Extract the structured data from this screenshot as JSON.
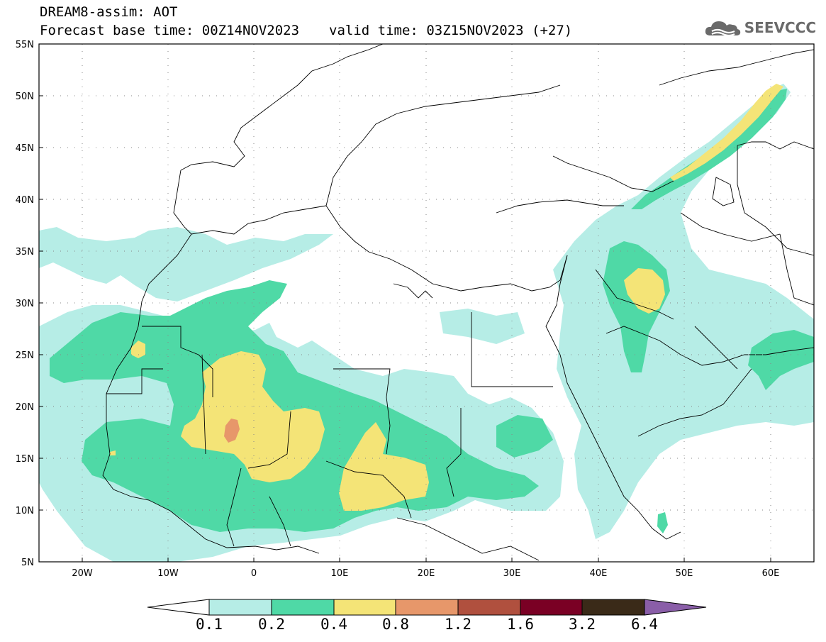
{
  "header": {
    "title": "DREAM8-assim: AOT",
    "base_time": "Forecast base time: 00Z14NOV2023",
    "valid_time": "valid time: 03Z15NOV2023 (+27)"
  },
  "logo": {
    "text": "SEEVCCC",
    "icon": "cloud-icon"
  },
  "map": {
    "lat_labels": [
      "55N",
      "50N",
      "45N",
      "40N",
      "35N",
      "30N",
      "25N",
      "20N",
      "15N",
      "10N",
      "5N"
    ],
    "lon_labels": [
      "20W",
      "10W",
      "0",
      "10E",
      "20E",
      "30E",
      "40E",
      "50E",
      "60E"
    ],
    "lat_range": [
      5,
      55
    ],
    "lon_range": [
      -25,
      65
    ],
    "graticule": "dotted"
  },
  "legend": {
    "levels": [
      "0.1",
      "0.2",
      "0.4",
      "0.8",
      "1.2",
      "1.6",
      "3.2",
      "6.4"
    ],
    "colors": [
      "#ffffff",
      "#b6ede6",
      "#4fd9a6",
      "#f4e477",
      "#e7976a",
      "#b0503e",
      "#7a0024",
      "#3a2a18",
      "#8a5ea8"
    ]
  }
}
